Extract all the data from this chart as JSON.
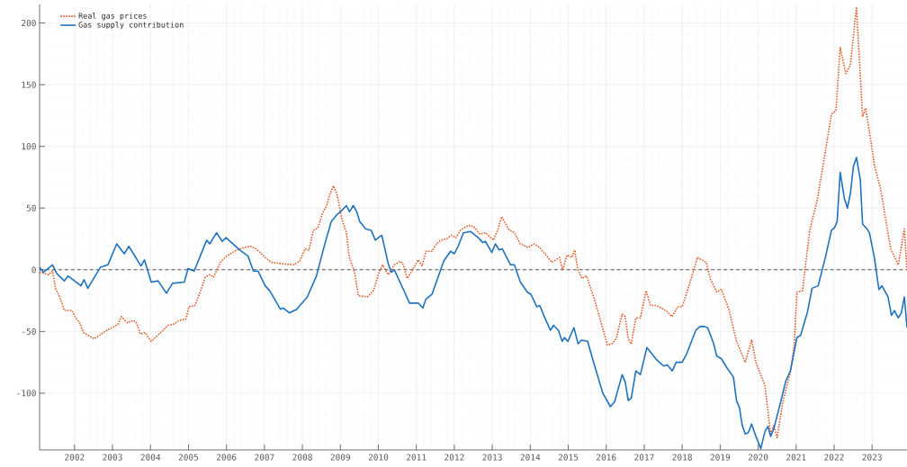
{
  "chart_data": {
    "type": "line",
    "xlim": [
      2001.08,
      2023.92
    ],
    "ylim": [
      -146,
      215
    ],
    "xticks": [
      2002,
      2003,
      2004,
      2005,
      2006,
      2007,
      2008,
      2009,
      2010,
      2011,
      2012,
      2013,
      2014,
      2015,
      2016,
      2017,
      2018,
      2019,
      2020,
      2021,
      2022,
      2023
    ],
    "yticks": [
      -100,
      -50,
      0,
      50,
      100,
      150,
      200
    ],
    "grid": true,
    "legend": "top left",
    "ref_lines": [
      {
        "axis": "y",
        "value": 0,
        "color": "#555555",
        "line_style": "dashed"
      }
    ],
    "series": [
      {
        "name": "Real gas prices",
        "color": "#e05a28",
        "line_style": "dotted",
        "x": [
          2001.08,
          2001.32,
          2001.42,
          2001.5,
          2001.61,
          2001.73,
          2001.93,
          2002.05,
          2002.12,
          2002.24,
          2002.52,
          2002.8,
          2003.04,
          2003.15,
          2003.23,
          2003.39,
          2003.55,
          2003.63,
          2003.73,
          2003.86,
          2004.02,
          2004.3,
          2004.46,
          2004.61,
          2004.77,
          2004.93,
          2005.01,
          2005.17,
          2005.31,
          2005.44,
          2005.56,
          2005.66,
          2005.84,
          2006.0,
          2006.27,
          2006.47,
          2006.63,
          2006.78,
          2007.02,
          2007.18,
          2007.45,
          2007.77,
          2007.93,
          2008.07,
          2008.17,
          2008.29,
          2008.41,
          2008.53,
          2008.64,
          2008.72,
          2008.82,
          2008.92,
          2009.04,
          2009.16,
          2009.23,
          2009.39,
          2009.47,
          2009.71,
          2009.87,
          2010.03,
          2010.11,
          2010.26,
          2010.42,
          2010.58,
          2010.66,
          2010.76,
          2010.9,
          2011.05,
          2011.15,
          2011.25,
          2011.41,
          2011.53,
          2011.64,
          2011.8,
          2011.92,
          2012.04,
          2012.16,
          2012.37,
          2012.51,
          2012.67,
          2012.82,
          2013.03,
          2013.14,
          2013.25,
          2013.42,
          2013.58,
          2013.74,
          2013.94,
          2014.1,
          2014.25,
          2014.41,
          2014.57,
          2014.77,
          2014.85,
          2014.97,
          2015.09,
          2015.17,
          2015.25,
          2015.36,
          2015.48,
          2015.67,
          2015.83,
          2016.03,
          2016.15,
          2016.26,
          2016.42,
          2016.5,
          2016.58,
          2016.66,
          2016.78,
          2016.9,
          2017.05,
          2017.17,
          2017.33,
          2017.57,
          2017.73,
          2017.89,
          2018.0,
          2018.2,
          2018.4,
          2018.63,
          2018.75,
          2018.91,
          2019.03,
          2019.23,
          2019.43,
          2019.66,
          2019.83,
          2019.94,
          2020.18,
          2020.33,
          2020.41,
          2020.5,
          2020.65,
          2020.85,
          2020.95,
          2021.02,
          2021.17,
          2021.26,
          2021.36,
          2021.56,
          2021.77,
          2021.93,
          2022.05,
          2022.16,
          2022.31,
          2022.43,
          2022.59,
          2022.75,
          2022.83,
          2022.93,
          2023.06,
          2023.22,
          2023.33,
          2023.49,
          2023.69,
          2023.85,
          2023.92
        ],
        "values": [
          -2,
          -4,
          -1,
          -15,
          -22,
          -33,
          -33,
          -40,
          -42,
          -51,
          -56,
          -50,
          -46,
          -44,
          -38,
          -43,
          -41,
          -43,
          -52,
          -51,
          -58,
          -50,
          -45,
          -44,
          -41,
          -40,
          -30,
          -29,
          -18,
          -6,
          -4,
          -6,
          6,
          11,
          16,
          18,
          19,
          17,
          10,
          6,
          5,
          4,
          7,
          17,
          16,
          32,
          34,
          46,
          52,
          61,
          68,
          60,
          41,
          30,
          11,
          -4,
          -21,
          -22,
          -17,
          -1,
          4,
          -4,
          4,
          7,
          4,
          -7,
          0,
          8,
          3,
          15,
          15,
          21,
          24,
          25,
          28,
          26,
          32,
          36,
          35,
          29,
          30,
          24,
          32,
          43,
          33,
          30,
          21,
          18,
          21,
          18,
          12,
          6,
          10,
          0,
          12,
          10,
          16,
          0,
          -7,
          -5,
          -22,
          -39,
          -61,
          -60,
          -56,
          -36,
          -38,
          -56,
          -60,
          -39,
          -39,
          -17,
          -29,
          -29,
          -33,
          -38,
          -30,
          -30,
          -11,
          10,
          6,
          -8,
          -18,
          -16,
          -32,
          -58,
          -75,
          -57,
          -75,
          -94,
          -134,
          -126,
          -136,
          -107,
          -83,
          -61,
          -18,
          -17,
          7,
          32,
          57,
          96,
          126,
          129,
          180,
          159,
          166,
          213,
          124,
          131,
          112,
          85,
          66,
          46,
          17,
          4,
          33,
          0
        ]
      },
      {
        "name": "Gas supply contribution",
        "color": "#1f72bd",
        "line_style": "solid",
        "x": [
          2001.08,
          2001.18,
          2001.42,
          2001.53,
          2001.73,
          2001.83,
          2002.17,
          2002.25,
          2002.35,
          2002.68,
          2002.88,
          2003.11,
          2003.31,
          2003.43,
          2003.75,
          2003.84,
          2004.02,
          2004.2,
          2004.42,
          2004.58,
          2004.89,
          2004.99,
          2005.15,
          2005.48,
          2005.56,
          2005.74,
          2005.89,
          2005.99,
          2006.35,
          2006.57,
          2006.71,
          2006.83,
          2007.02,
          2007.14,
          2007.42,
          2007.5,
          2007.66,
          2007.85,
          2008.13,
          2008.37,
          2008.6,
          2008.76,
          2008.92,
          2009.0,
          2009.16,
          2009.24,
          2009.34,
          2009.43,
          2009.51,
          2009.67,
          2009.81,
          2009.92,
          2010.09,
          2010.26,
          2010.34,
          2010.42,
          2010.66,
          2010.82,
          2011.05,
          2011.17,
          2011.25,
          2011.41,
          2011.56,
          2011.72,
          2011.9,
          2012.0,
          2012.1,
          2012.24,
          2012.43,
          2012.63,
          2012.75,
          2012.82,
          2012.99,
          2013.08,
          2013.18,
          2013.26,
          2013.48,
          2013.58,
          2013.74,
          2013.92,
          2014.02,
          2014.17,
          2014.25,
          2014.37,
          2014.53,
          2014.61,
          2014.74,
          2014.84,
          2014.9,
          2014.99,
          2015.15,
          2015.26,
          2015.35,
          2015.51,
          2015.63,
          2015.91,
          2016.11,
          2016.22,
          2016.42,
          2016.5,
          2016.58,
          2016.66,
          2016.78,
          2016.9,
          2017.07,
          2017.2,
          2017.33,
          2017.51,
          2017.61,
          2017.74,
          2017.84,
          2018.0,
          2018.12,
          2018.36,
          2018.47,
          2018.59,
          2018.67,
          2018.83,
          2018.91,
          2019.03,
          2019.19,
          2019.35,
          2019.43,
          2019.51,
          2019.58,
          2019.66,
          2019.74,
          2019.83,
          2019.94,
          2020.02,
          2020.07,
          2020.18,
          2020.26,
          2020.33,
          2020.41,
          2020.57,
          2020.73,
          2020.85,
          2021.02,
          2021.12,
          2021.3,
          2021.42,
          2021.58,
          2021.77,
          2021.93,
          2022.01,
          2022.08,
          2022.16,
          2022.27,
          2022.35,
          2022.43,
          2022.51,
          2022.59,
          2022.69,
          2022.75,
          2022.87,
          2022.93,
          2023.06,
          2023.18,
          2023.26,
          2023.42,
          2023.51,
          2023.59,
          2023.69,
          2023.77,
          2023.85,
          2023.92
        ],
        "values": [
          2,
          -2,
          4,
          -3,
          -9,
          -5,
          -13,
          -8,
          -15,
          2,
          4,
          21,
          13,
          19,
          3,
          8,
          -10,
          -9,
          -19,
          -11,
          -10,
          1,
          -1,
          24,
          21,
          30,
          23,
          26,
          16,
          11,
          -1,
          -1,
          -13,
          -17,
          -32,
          -31,
          -35,
          -32,
          -22,
          -5,
          22,
          39,
          45,
          47,
          52,
          47,
          52,
          47,
          39,
          33,
          32,
          24,
          28,
          5,
          -2,
          0,
          -16,
          -27,
          -27,
          -31,
          -24,
          -20,
          -7,
          7,
          15,
          13,
          19,
          30,
          31,
          26,
          22,
          23,
          14,
          21,
          16,
          17,
          4,
          4,
          -10,
          -18,
          -20,
          -30,
          -29,
          -38,
          -49,
          -45,
          -49,
          -58,
          -55,
          -58,
          -47,
          -60,
          -57,
          -58,
          -71,
          -100,
          -111,
          -107,
          -85,
          -91,
          -106,
          -104,
          -82,
          -85,
          -63,
          -68,
          -73,
          -78,
          -77,
          -82,
          -75,
          -75,
          -68,
          -49,
          -46,
          -46,
          -47,
          -60,
          -70,
          -72,
          -80,
          -87,
          -106,
          -112,
          -126,
          -133,
          -132,
          -125,
          -135,
          -141,
          -145,
          -131,
          -127,
          -135,
          -129,
          -110,
          -90,
          -82,
          -55,
          -53,
          -34,
          -15,
          -13,
          10,
          32,
          34,
          39,
          79,
          58,
          50,
          62,
          84,
          91,
          73,
          37,
          33,
          30,
          10,
          -16,
          -13,
          -22,
          -37,
          -33,
          -39,
          -35,
          -22,
          -47
        ]
      }
    ]
  }
}
